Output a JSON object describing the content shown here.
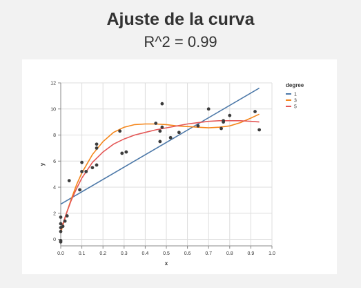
{
  "header": {
    "title": "Ajuste de la curva",
    "subtitle": "R^2 = 0.99"
  },
  "chart_data": {
    "type": "scatter",
    "xlabel": "x",
    "ylabel": "y",
    "xlim": [
      0.0,
      1.0
    ],
    "ylim": [
      -0.5,
      12
    ],
    "x_ticks": [
      "0.0",
      "0.1",
      "0.2",
      "0.3",
      "0.4",
      "0.5",
      "0.6",
      "0.7",
      "0.8",
      "0.9",
      "1.0"
    ],
    "y_ticks": [
      "0",
      "2",
      "4",
      "6",
      "8",
      "10",
      "12"
    ],
    "grid": true,
    "legend": {
      "title": "degree",
      "position": "top-right"
    },
    "points": {
      "color": "#3c3c3c",
      "x": [
        0.0,
        0.0,
        0.0,
        0.0,
        0.0,
        0.0,
        0.01,
        0.02,
        0.03,
        0.04,
        0.09,
        0.1,
        0.1,
        0.12,
        0.15,
        0.17,
        0.17,
        0.17,
        0.28,
        0.29,
        0.31,
        0.45,
        0.47,
        0.47,
        0.48,
        0.48,
        0.52,
        0.56,
        0.65,
        0.7,
        0.76,
        0.77,
        0.77,
        0.8,
        0.92,
        0.94
      ],
      "y": [
        -0.2,
        -0.1,
        0.6,
        0.9,
        1.2,
        1.7,
        1.0,
        1.4,
        1.8,
        4.5,
        3.8,
        5.2,
        5.9,
        5.2,
        5.5,
        5.7,
        7.0,
        7.3,
        8.3,
        6.6,
        6.7,
        8.9,
        7.5,
        8.3,
        8.6,
        10.4,
        7.8,
        8.2,
        8.7,
        10.0,
        8.5,
        9.0,
        9.1,
        9.5,
        9.8,
        8.4
      ]
    },
    "series": [
      {
        "name": "1",
        "color": "#4c78a8",
        "x": [
          0.0,
          0.94
        ],
        "y": [
          2.7,
          11.6
        ]
      },
      {
        "name": "3",
        "color": "#f58518",
        "x": [
          0.0,
          0.025,
          0.05,
          0.075,
          0.1,
          0.15,
          0.2,
          0.25,
          0.3,
          0.35,
          0.4,
          0.45,
          0.5,
          0.55,
          0.6,
          0.65,
          0.7,
          0.75,
          0.8,
          0.85,
          0.9,
          0.94
        ],
        "y": [
          0.5,
          1.9,
          3.1,
          4.2,
          5.1,
          6.5,
          7.5,
          8.2,
          8.6,
          8.8,
          8.85,
          8.85,
          8.8,
          8.7,
          8.65,
          8.6,
          8.55,
          8.6,
          8.7,
          8.95,
          9.3,
          9.6
        ]
      },
      {
        "name": "5",
        "color": "#e45756",
        "x": [
          0.0,
          0.025,
          0.05,
          0.075,
          0.1,
          0.15,
          0.2,
          0.25,
          0.3,
          0.35,
          0.4,
          0.45,
          0.5,
          0.55,
          0.6,
          0.65,
          0.7,
          0.75,
          0.8,
          0.85,
          0.9,
          0.94
        ],
        "y": [
          0.7,
          1.9,
          3.0,
          3.9,
          4.7,
          5.9,
          6.7,
          7.3,
          7.7,
          8.0,
          8.2,
          8.4,
          8.55,
          8.7,
          8.85,
          8.95,
          9.05,
          9.1,
          9.1,
          9.1,
          9.05,
          9.0
        ]
      }
    ]
  }
}
